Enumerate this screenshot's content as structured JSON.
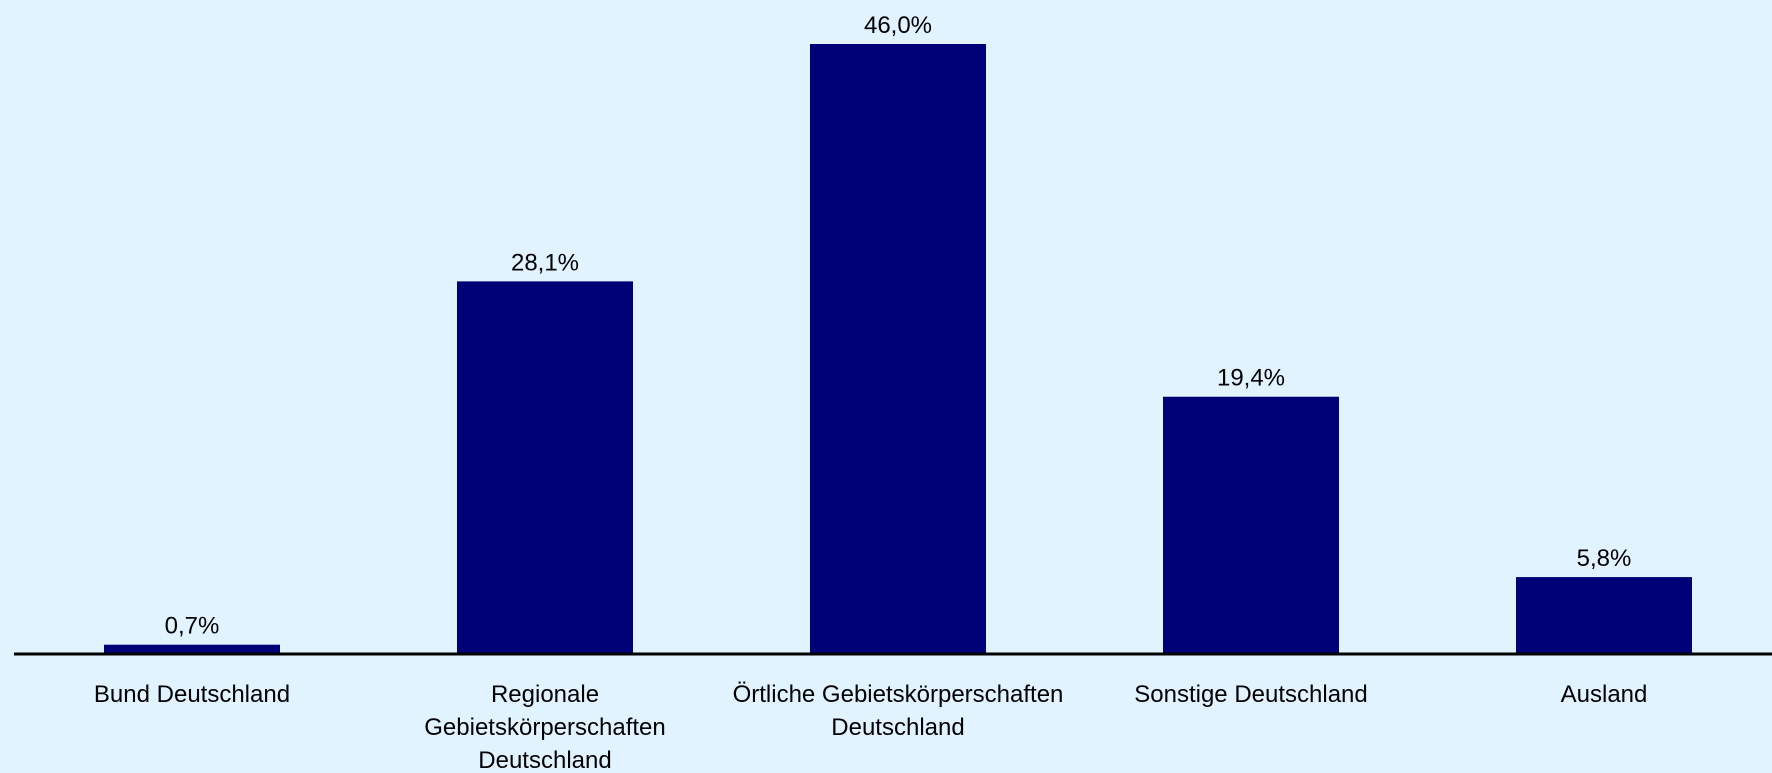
{
  "chart_data": {
    "type": "bar",
    "title": "",
    "xlabel": "",
    "ylabel": "",
    "categories": [
      [
        "Bund Deutschland"
      ],
      [
        "Regionale",
        "Gebietskörperschaften",
        "Deutschland"
      ],
      [
        "Örtliche Gebietskörperschaften",
        "Deutschland"
      ],
      [
        "Sonstige Deutschland"
      ],
      [
        "Ausland"
      ]
    ],
    "values": [
      0.7,
      28.1,
      46.0,
      19.4,
      5.8
    ],
    "value_labels": [
      "0,7%",
      "28,1%",
      "46,0%",
      "19,4%",
      "5,8%"
    ],
    "ylim": [
      0,
      46.0
    ],
    "grid": false,
    "legend": "none",
    "colors": {
      "background": "#e1f3ff",
      "bar": "#000077",
      "axis": "#000000"
    }
  }
}
